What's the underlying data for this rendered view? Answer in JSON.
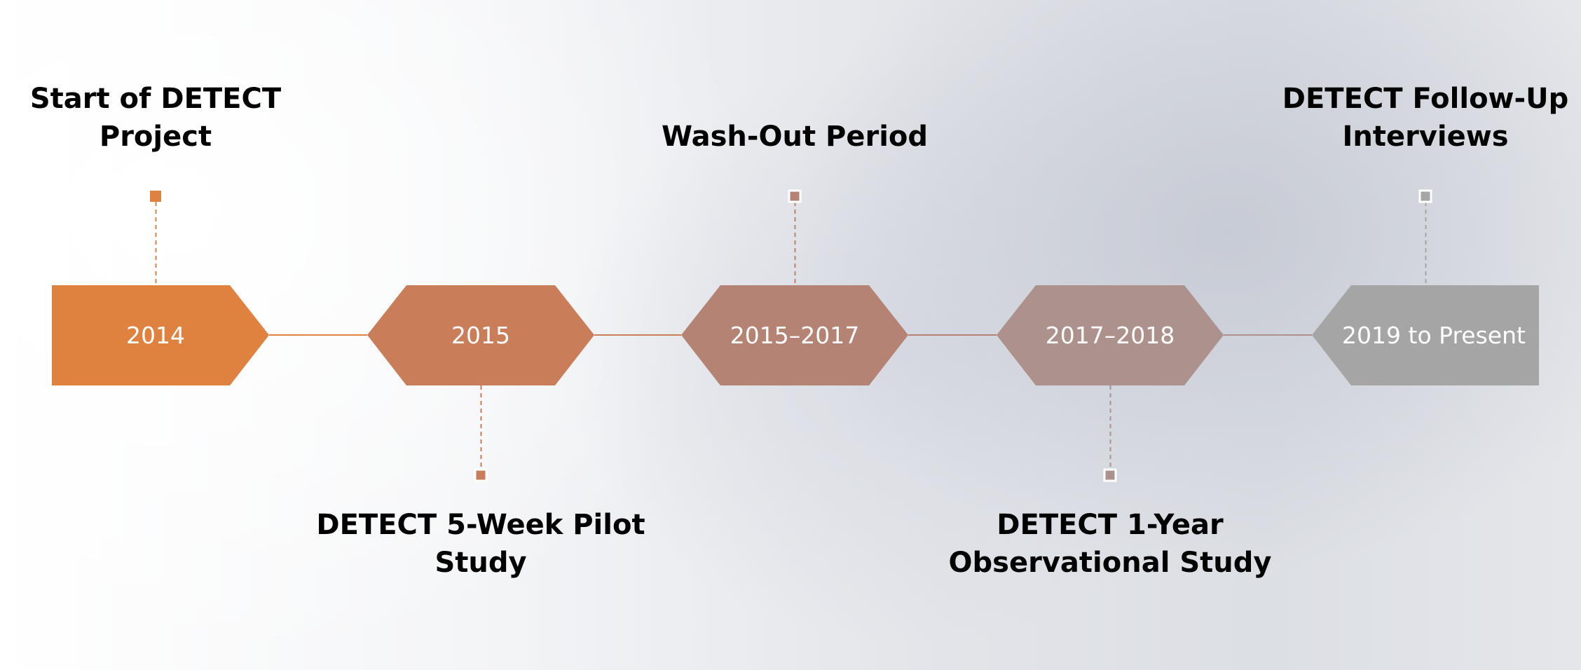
{
  "timeline": {
    "milestones": [
      {
        "id": "start-of-detect",
        "date": "2014",
        "label_lines": [
          "Start of DETECT",
          "Project"
        ],
        "label_position": "above",
        "color": "#e0823f"
      },
      {
        "id": "pilot-study",
        "date": "2015",
        "label_lines": [
          "DETECT 5-Week Pilot",
          "Study"
        ],
        "label_position": "below",
        "color": "#c97d59"
      },
      {
        "id": "wash-out",
        "date": "2015–2017",
        "label_lines": [
          "Wash-Out Period"
        ],
        "label_position": "above",
        "color": "#b58373"
      },
      {
        "id": "observational-study",
        "date": "2017–2018",
        "label_lines": [
          "DETECT 1-Year",
          "Observational Study"
        ],
        "label_position": "below",
        "color": "#ad918d"
      },
      {
        "id": "follow-up",
        "date": "2019 to Present",
        "label_lines": [
          "DETECT Follow-Up",
          "Interviews"
        ],
        "label_position": "above",
        "color": "#a5a5a5"
      }
    ]
  }
}
